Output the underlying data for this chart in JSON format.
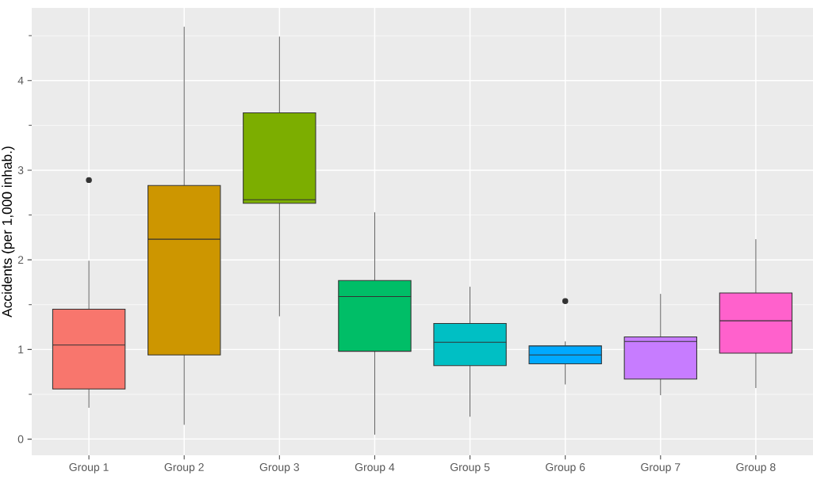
{
  "chart_data": {
    "type": "box",
    "ylabel": "Accidents (per 1,000 inhab.)",
    "categories": [
      "Group 1",
      "Group 2",
      "Group 3",
      "Group 4",
      "Group 5",
      "Group 6",
      "Group 7",
      "Group 8"
    ],
    "colors": [
      "#f8766d",
      "#cd9600",
      "#7cae00",
      "#00be67",
      "#00bfc4",
      "#00a9ff",
      "#c77cff",
      "#ff61cc"
    ],
    "boxes": [
      {
        "low": 0.35,
        "q1": 0.56,
        "median": 1.05,
        "q3": 1.45,
        "high": 1.99,
        "outliers": [
          2.89
        ]
      },
      {
        "low": 0.16,
        "q1": 0.94,
        "median": 2.23,
        "q3": 2.83,
        "high": 4.6
      },
      {
        "low": 1.37,
        "q1": 2.63,
        "median": 2.67,
        "q3": 3.64,
        "high": 4.49
      },
      {
        "low": 0.05,
        "q1": 0.98,
        "median": 1.59,
        "q3": 1.77,
        "high": 2.53
      },
      {
        "low": 0.25,
        "q1": 0.82,
        "median": 1.08,
        "q3": 1.29,
        "high": 1.7
      },
      {
        "low": 0.61,
        "q1": 0.84,
        "median": 0.94,
        "q3": 1.04,
        "high": 1.09,
        "outliers": [
          1.54
        ]
      },
      {
        "low": 0.49,
        "q1": 0.67,
        "median": 1.09,
        "q3": 1.14,
        "high": 1.62
      },
      {
        "low": 0.57,
        "q1": 0.96,
        "median": 1.32,
        "q3": 1.63,
        "high": 2.23
      }
    ],
    "ylim": [
      -0.18,
      4.81
    ],
    "yticks": [
      0,
      1,
      2,
      3,
      4
    ],
    "grid": true
  }
}
